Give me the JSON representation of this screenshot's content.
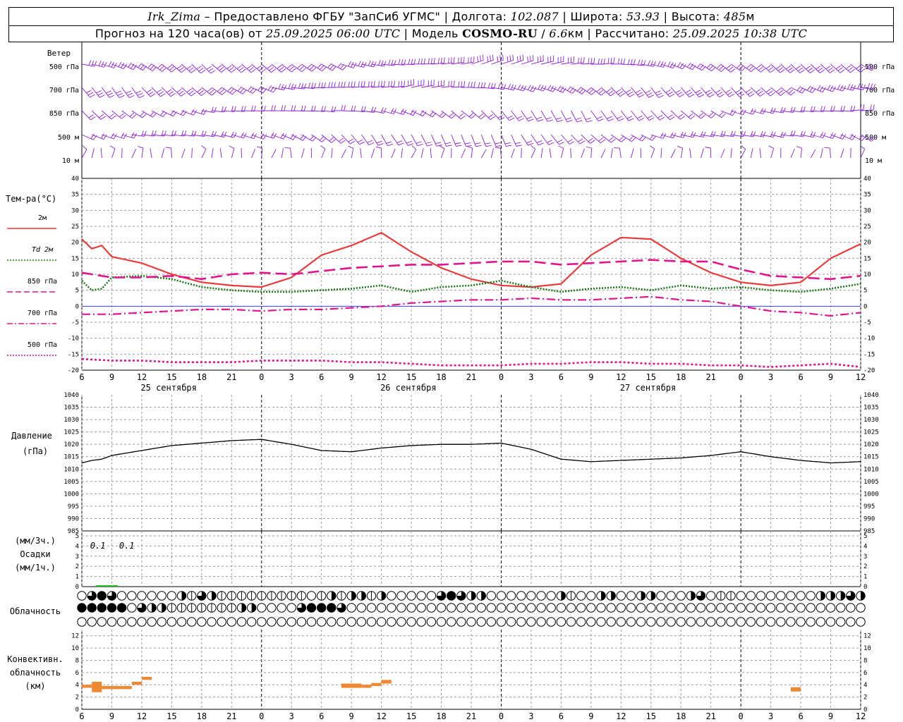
{
  "header": {
    "station": "Irk_Zima",
    "provider": "– Предоставлено ФГБУ \"ЗапСиб УГМС\"",
    "lon_label": "Долгота:",
    "lon": "102.087",
    "lat_label": "Широта:",
    "lat": "53.93",
    "alt_label": "Высота:",
    "alt": "485",
    "alt_unit": "м",
    "forecast_label": "Прогноз на 120 часа(ов) от",
    "forecast_start": "25.09.2025 06:00 UTC",
    "model_label": "Модель",
    "model": "COSMO-RU",
    "model_res": "6.6",
    "model_res_unit": "км",
    "calc_label": "Рассчитано:",
    "calc_time": "25.09.2025 10:38 UTC"
  },
  "colors": {
    "wind": "#8c1ed8",
    "t2m": "#e83c3c",
    "td2m": "#1a7a1a",
    "pink": "#e0148c",
    "pressure": "#000000",
    "precip": "#20c020",
    "conv": "#ee8833",
    "grid": "#9a9a9a",
    "zero_line": "#3a3aff"
  },
  "wind_panel": {
    "title": "Ветер",
    "levels": [
      "500 гПа",
      "700 гПа",
      "850 гПа",
      "500 м",
      "10 м"
    ]
  },
  "temp_panel": {
    "title": "Тем-ра(°C)",
    "legend": [
      {
        "label": "2м",
        "style": "solid",
        "color": "#e83c3c"
      },
      {
        "label": "Td 2м",
        "style": "dotted",
        "color": "#1a7a1a"
      },
      {
        "label": "850 гПа",
        "style": "solid",
        "color": "#e0148c"
      },
      {
        "label": "700 гПа",
        "style": "dashdot",
        "color": "#e0148c"
      },
      {
        "label": "500 гПа",
        "style": "dotted",
        "color": "#e0148c"
      }
    ],
    "yticks": [
      "40",
      "35",
      "30",
      "25",
      "20",
      "15",
      "10",
      "5",
      "0",
      "-5",
      "-10",
      "-15",
      "-20"
    ],
    "xticks": [
      "6",
      "9",
      "12",
      "15",
      "18",
      "21",
      "0",
      "3",
      "6",
      "9",
      "12",
      "15",
      "18",
      "21",
      "0",
      "3",
      "6",
      "9",
      "12",
      "15",
      "18",
      "21",
      "0",
      "3",
      "6",
      "9",
      "12"
    ],
    "dates": [
      "25 сентября",
      "26 сентября",
      "27 сентября"
    ]
  },
  "pressure_panel": {
    "title1": "Давление",
    "title2": "(гПа)",
    "yticks": [
      "1040",
      "1035",
      "1030",
      "1025",
      "1020",
      "1015",
      "1010",
      "1005",
      "1000",
      "995",
      "990",
      "985"
    ]
  },
  "precip_panel": {
    "title1": "(мм/3ч.)",
    "title2": "Осадки",
    "title3": "(мм/1ч.)",
    "yticks": [
      "5",
      "4",
      "3",
      "2",
      "1",
      "0"
    ],
    "labels": [
      "0.1",
      "0.1"
    ]
  },
  "cloud_panel": {
    "title": "Облачность"
  },
  "conv_panel": {
    "title1": "Конвективн.",
    "title2": "облачность",
    "title3": "(км)",
    "yticks": [
      "12",
      "10",
      "8",
      "6",
      "4",
      "2",
      "0"
    ],
    "xticks": [
      "6",
      "9",
      "12",
      "15",
      "18",
      "21",
      "0",
      "3",
      "6",
      "9",
      "12",
      "15",
      "18",
      "21",
      "0",
      "3",
      "6",
      "9",
      "12",
      "15",
      "18",
      "21",
      "0",
      "3",
      "6",
      "9",
      "12"
    ]
  },
  "chart_data": {
    "type": "line",
    "x_hours": [
      0,
      3,
      6,
      9,
      12,
      15,
      18,
      21,
      24,
      27,
      30,
      33,
      36,
      39,
      42,
      45,
      48,
      51,
      54,
      57,
      60,
      63,
      66,
      69,
      72,
      75,
      78
    ],
    "x_hour_note": "hours from 25.09.2025 06:00 UTC",
    "temperature": {
      "ylim": [
        -20,
        40
      ],
      "series": [
        {
          "name": "2м",
          "hours": [
            0,
            1,
            2,
            3,
            6,
            9,
            12,
            15,
            18,
            21,
            24,
            27,
            30,
            33,
            36,
            39,
            42,
            45,
            48,
            51,
            54,
            57,
            60,
            63,
            66,
            69,
            72,
            75,
            78
          ],
          "values": [
            21,
            18,
            19,
            15.5,
            13.5,
            10,
            7.5,
            6.5,
            6,
            9,
            16,
            19,
            23,
            17,
            12,
            8.5,
            6.5,
            6,
            7,
            16,
            21.5,
            21,
            15,
            10.5,
            7.5,
            6.5,
            7.5,
            15,
            19.5
          ]
        },
        {
          "name": "Td 2м",
          "hours": [
            0,
            1,
            2,
            3,
            6,
            9,
            12,
            15,
            18,
            21,
            24,
            27,
            30,
            33,
            36,
            39,
            42,
            45,
            48,
            51,
            54,
            57,
            60,
            63,
            66,
            69,
            72,
            75,
            78
          ],
          "values": [
            8,
            5,
            5.5,
            9,
            9.5,
            8.5,
            6,
            5,
            4.5,
            4.5,
            5,
            5.5,
            6.5,
            4.5,
            6,
            6.5,
            8,
            6,
            4.5,
            5.5,
            6,
            5,
            6.5,
            5.5,
            6,
            5,
            4.5,
            5.5,
            7
          ]
        },
        {
          "name": "850 гПа",
          "hours": [
            0,
            3,
            6,
            9,
            12,
            15,
            18,
            21,
            24,
            27,
            30,
            33,
            36,
            39,
            42,
            45,
            48,
            51,
            54,
            57,
            60,
            63,
            66,
            69,
            72,
            75,
            78
          ],
          "values": [
            10.5,
            9,
            9,
            9.5,
            8.5,
            10,
            10.5,
            10,
            11,
            12,
            12.5,
            13,
            13,
            13.5,
            14,
            14,
            13,
            13.5,
            14,
            14.5,
            14,
            14,
            11.5,
            9.5,
            9,
            8.5,
            9.5
          ]
        },
        {
          "name": "700 гПа",
          "hours": [
            0,
            3,
            6,
            9,
            12,
            15,
            18,
            21,
            24,
            27,
            30,
            33,
            36,
            39,
            42,
            45,
            48,
            51,
            54,
            57,
            60,
            63,
            66,
            69,
            72,
            75,
            78
          ],
          "values": [
            -2.5,
            -2.5,
            -2,
            -1.5,
            -1,
            -1,
            -1.5,
            -1,
            -1,
            -0.5,
            0,
            1,
            1.5,
            2,
            2,
            2.5,
            2,
            2,
            2.5,
            3,
            2,
            1.5,
            0,
            -1.5,
            -2,
            -3,
            -2
          ]
        },
        {
          "name": "500 гПа",
          "hours": [
            0,
            3,
            6,
            9,
            12,
            15,
            18,
            21,
            24,
            27,
            30,
            33,
            36,
            39,
            42,
            45,
            48,
            51,
            54,
            57,
            60,
            63,
            66,
            69,
            72,
            75,
            78
          ],
          "values": [
            -16.5,
            -17,
            -17,
            -17.5,
            -17.5,
            -17.5,
            -17,
            -17,
            -17,
            -17.5,
            -17.5,
            -18,
            -18.5,
            -18.5,
            -18.5,
            -18,
            -18,
            -17.5,
            -17.5,
            -18,
            -18,
            -18.5,
            -18.5,
            -19,
            -18.5,
            -18,
            -19
          ]
        }
      ]
    },
    "pressure": {
      "ylim": [
        985,
        1040
      ],
      "hours": [
        0,
        1,
        2,
        3,
        6,
        9,
        12,
        15,
        18,
        21,
        24,
        27,
        30,
        33,
        36,
        39,
        42,
        45,
        48,
        51,
        54,
        57,
        60,
        63,
        66,
        69,
        72,
        75,
        78
      ],
      "values": [
        1012.5,
        1013.5,
        1014,
        1015.5,
        1017.5,
        1019.5,
        1020.5,
        1021.5,
        1022,
        1020,
        1017.5,
        1017,
        1018.5,
        1019.5,
        1020,
        1020,
        1020.5,
        1018,
        1014,
        1013,
        1013.5,
        1014,
        1014.5,
        1015.5,
        1017,
        1015,
        1013.5,
        1012.5,
        1013
      ]
    },
    "precipitation": {
      "ylim": [
        0,
        5
      ],
      "series": [
        {
          "name": "мм/1ч",
          "hours": [
            2,
            3
          ],
          "values": [
            0.1,
            0.1
          ]
        }
      ]
    },
    "convective_cloud_km": {
      "ylim": [
        0,
        13
      ],
      "segments": [
        {
          "start_hour": 0,
          "end_hour": 1,
          "bottom": 3.5,
          "top": 4.0
        },
        {
          "start_hour": 1,
          "end_hour": 2,
          "bottom": 2.8,
          "top": 4.5
        },
        {
          "start_hour": 2,
          "end_hour": 5,
          "bottom": 3.3,
          "top": 3.8
        },
        {
          "start_hour": 5,
          "end_hour": 6,
          "bottom": 4.0,
          "top": 4.5
        },
        {
          "start_hour": 6,
          "end_hour": 7,
          "bottom": 4.8,
          "top": 5.3
        },
        {
          "start_hour": 26,
          "end_hour": 28,
          "bottom": 3.5,
          "top": 4.2
        },
        {
          "start_hour": 28,
          "end_hour": 29,
          "bottom": 3.5,
          "top": 4.0
        },
        {
          "start_hour": 29,
          "end_hour": 30,
          "bottom": 3.8,
          "top": 4.3
        },
        {
          "start_hour": 30,
          "end_hour": 31,
          "bottom": 4.2,
          "top": 4.8
        },
        {
          "start_hour": 71,
          "end_hour": 72,
          "bottom": 2.9,
          "top": 3.6
        }
      ]
    },
    "cloud_cover_rows": {
      "count": 79,
      "rows": [
        {
          "name": "верхний",
          "segments": [
            [
              0,
              1,
              0
            ],
            [
              1,
              2,
              3
            ],
            [
              2,
              3,
              4
            ],
            [
              3,
              4,
              3
            ],
            [
              4,
              10,
              0
            ],
            [
              10,
              11,
              2
            ],
            [
              11,
              12,
              1
            ],
            [
              12,
              13,
              3
            ],
            [
              13,
              14,
              2
            ],
            [
              14,
              15,
              1
            ],
            [
              15,
              23,
              1
            ],
            [
              23,
              24,
              0
            ],
            [
              24,
              25,
              1
            ],
            [
              25,
              26,
              2
            ],
            [
              26,
              27,
              1
            ],
            [
              27,
              28,
              2
            ],
            [
              28,
              29,
              2
            ],
            [
              29,
              30,
              1
            ],
            [
              30,
              31,
              2
            ],
            [
              31,
              36,
              0
            ],
            [
              36,
              37,
              3
            ],
            [
              37,
              38,
              4
            ],
            [
              38,
              39,
              3
            ],
            [
              39,
              40,
              2
            ],
            [
              40,
              41,
              2
            ],
            [
              41,
              48,
              0
            ],
            [
              48,
              49,
              2
            ],
            [
              49,
              50,
              1
            ],
            [
              50,
              52,
              0
            ],
            [
              52,
              53,
              2
            ],
            [
              53,
              54,
              2
            ],
            [
              54,
              56,
              0
            ],
            [
              56,
              58,
              2
            ],
            [
              58,
              60,
              0
            ],
            [
              60,
              61,
              0
            ],
            [
              61,
              62,
              2
            ],
            [
              62,
              63,
              3
            ],
            [
              63,
              64,
              0
            ],
            [
              64,
              66,
              1
            ],
            [
              66,
              74,
              0
            ],
            [
              74,
              75,
              2
            ],
            [
              75,
              77,
              2
            ],
            [
              77,
              78,
              3
            ],
            [
              78,
              79,
              2
            ]
          ]
        },
        {
          "name": "средний",
          "segments": [
            [
              0,
              5,
              4
            ],
            [
              5,
              6,
              0
            ],
            [
              6,
              7,
              3
            ],
            [
              7,
              8,
              2
            ],
            [
              8,
              9,
              2
            ],
            [
              9,
              10,
              1
            ],
            [
              10,
              15,
              1
            ],
            [
              15,
              16,
              1
            ],
            [
              16,
              17,
              2
            ],
            [
              17,
              18,
              2
            ],
            [
              18,
              22,
              0
            ],
            [
              22,
              23,
              3
            ],
            [
              23,
              24,
              4
            ],
            [
              24,
              26,
              4
            ],
            [
              26,
              27,
              3
            ],
            [
              27,
              31,
              0
            ],
            [
              31,
              79,
              0
            ]
          ]
        },
        {
          "name": "нижний",
          "segments": [
            [
              0,
              79,
              0
            ]
          ]
        }
      ]
    }
  }
}
